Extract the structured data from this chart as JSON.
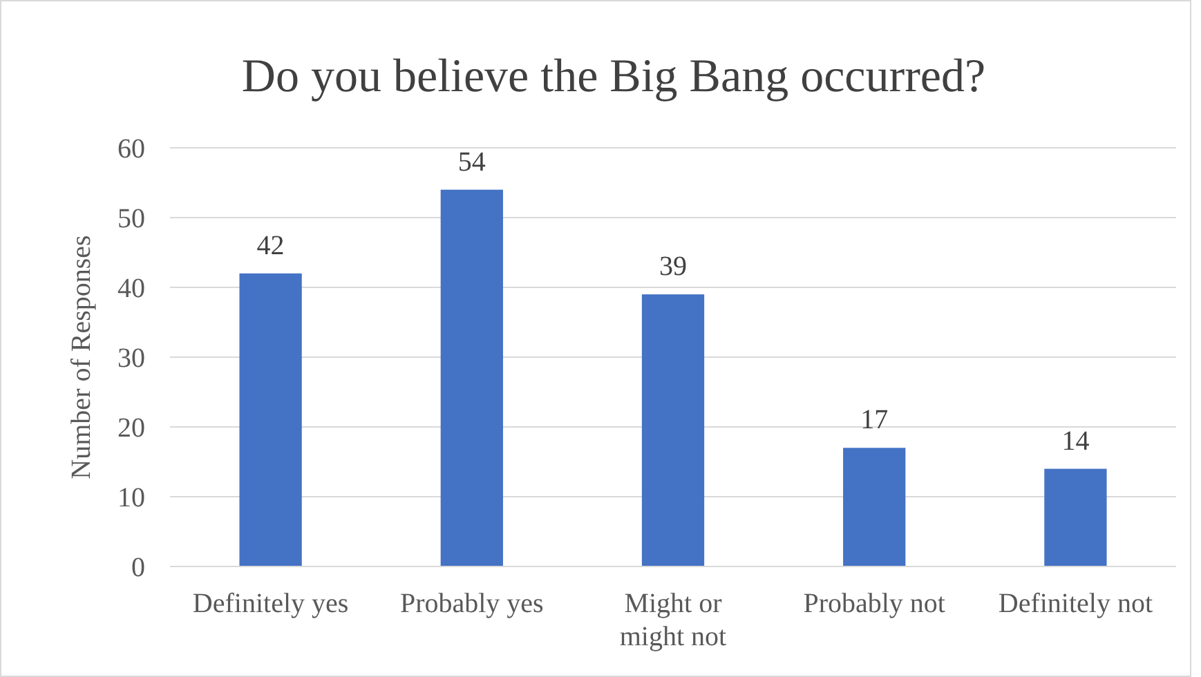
{
  "chart_data": {
    "type": "bar",
    "title": "Do you believe the Big Bang occurred?",
    "ylabel": "Number of Responses",
    "categories": [
      "Definitely yes",
      "Probably yes",
      "Might or might not",
      "Probably not",
      "Definitely not"
    ],
    "values": [
      42,
      54,
      39,
      17,
      14
    ],
    "color": "#4472c4",
    "ylim": [
      0,
      60
    ],
    "yticks": [
      0,
      10,
      20,
      30,
      40,
      50,
      60
    ],
    "grid": "y",
    "data_labels": true
  }
}
